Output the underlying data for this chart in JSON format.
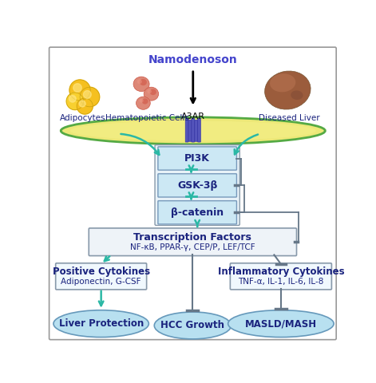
{
  "title_color": "#4444cc",
  "bg_color": "#ffffff",
  "border_color": "#aaaaaa",
  "teal_color": "#2bb8a5",
  "dark_blue": "#1a237e",
  "box_fill_light": "#cce8f4",
  "box_fill_mid": "#b8dff0",
  "tf_fill": "#eef3f8",
  "cytokine_fill": "#f0f8fd",
  "ellipse_fill": "#b8e0f0",
  "membrane_yellow": "#ede878",
  "receptor_color": "#5555bb",
  "gray_line": "#667788",
  "namodenoson_label": "Namodenoson",
  "a3ar_label": "A3AR",
  "adipocytes_label": "Adipocytes",
  "hematopoietic_label": "Hematopoietic Cells",
  "diseased_liver_label": "Diseased Liver",
  "pi3k_label": "PI3K",
  "gsk3b_label": "GSK-3β",
  "bcatenin_label": "β-catenin",
  "tf_title": "Transcription Factors",
  "tf_subtitle": "NF-κB, PPAR-γ, CEP/P, LEF/TCF",
  "pos_cytokines_title": "Positive Cytokines",
  "pos_cytokines_sub": "Adiponectin, G-CSF",
  "liver_protection": "Liver Protection",
  "hcc_growth": "HCC Growth",
  "inflam_cytokines_title": "Inflammatory Cytokines",
  "inflam_cytokines_sub": "TNF-α, IL-1, IL-6, IL-8",
  "masld_mash": "MASLD/MASH",
  "outer_box_fill": "#dde8f0"
}
